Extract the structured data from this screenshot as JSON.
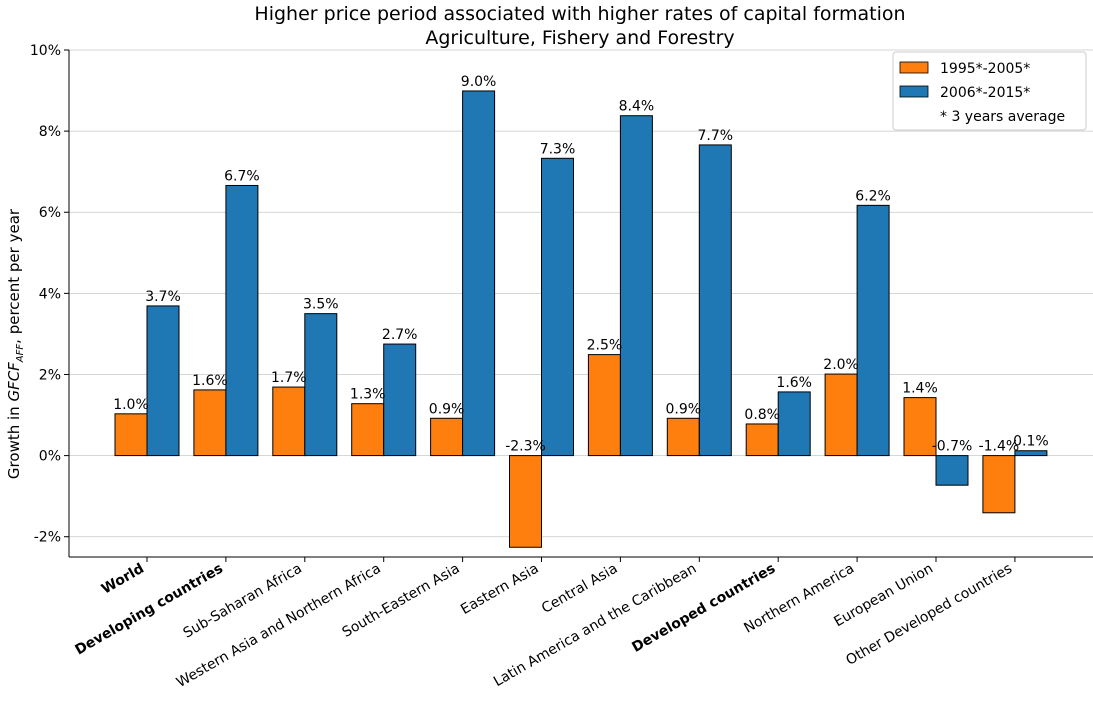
{
  "chart_data": {
    "type": "bar",
    "title": "Higher price period associated with higher rates of capital formation",
    "subtitle": "Agriculture, Fishery and Forestry",
    "ylabel_prefix": "Growth in ",
    "ylabel_var": "GFCF",
    "ylabel_sub": "AFF",
    "ylabel_suffix": ", percent per year",
    "ylim": [
      -2.5,
      10
    ],
    "yticks": [
      -2,
      0,
      2,
      4,
      6,
      8,
      10
    ],
    "ytick_labels": [
      "-2%",
      "0%",
      "2%",
      "4%",
      "6%",
      "8%",
      "10%"
    ],
    "grid": true,
    "legend_position": "top-right",
    "legend_note": "* 3 years average",
    "categories": [
      "World",
      "Developing countries",
      "Sub-Saharan Africa",
      "Western Asia and Northern Africa",
      "South-Eastern Asia",
      "Eastern Asia",
      "Central Asia",
      "Latin America and the Caribbean",
      "Developed countries",
      "Northern America",
      "European Union",
      "Other Developed countries"
    ],
    "bold_categories": [
      "World",
      "Developing countries",
      "Developed countries"
    ],
    "series": [
      {
        "name": "1995*-2005*",
        "color": "#ff7f0e",
        "values": [
          1.03,
          1.62,
          1.69,
          1.28,
          0.92,
          -2.26,
          2.49,
          0.92,
          0.78,
          2.01,
          1.43,
          -1.41
        ],
        "labels": [
          "1.0%",
          "1.6%",
          "1.7%",
          "1.3%",
          "0.9%",
          "-2.3%",
          "2.5%",
          "0.9%",
          "0.8%",
          "2.0%",
          "1.4%",
          "-1.4%"
        ]
      },
      {
        "name": "2006*-2015*",
        "color": "#1f77b4",
        "values": [
          3.69,
          6.66,
          3.5,
          2.75,
          8.99,
          7.33,
          8.38,
          7.66,
          1.57,
          6.17,
          -0.73,
          0.12
        ],
        "labels": [
          "3.7%",
          "6.7%",
          "3.5%",
          "2.7%",
          "9.0%",
          "7.3%",
          "8.4%",
          "7.7%",
          "1.6%",
          "6.2%",
          "-0.7%",
          "0.1%"
        ]
      }
    ]
  }
}
